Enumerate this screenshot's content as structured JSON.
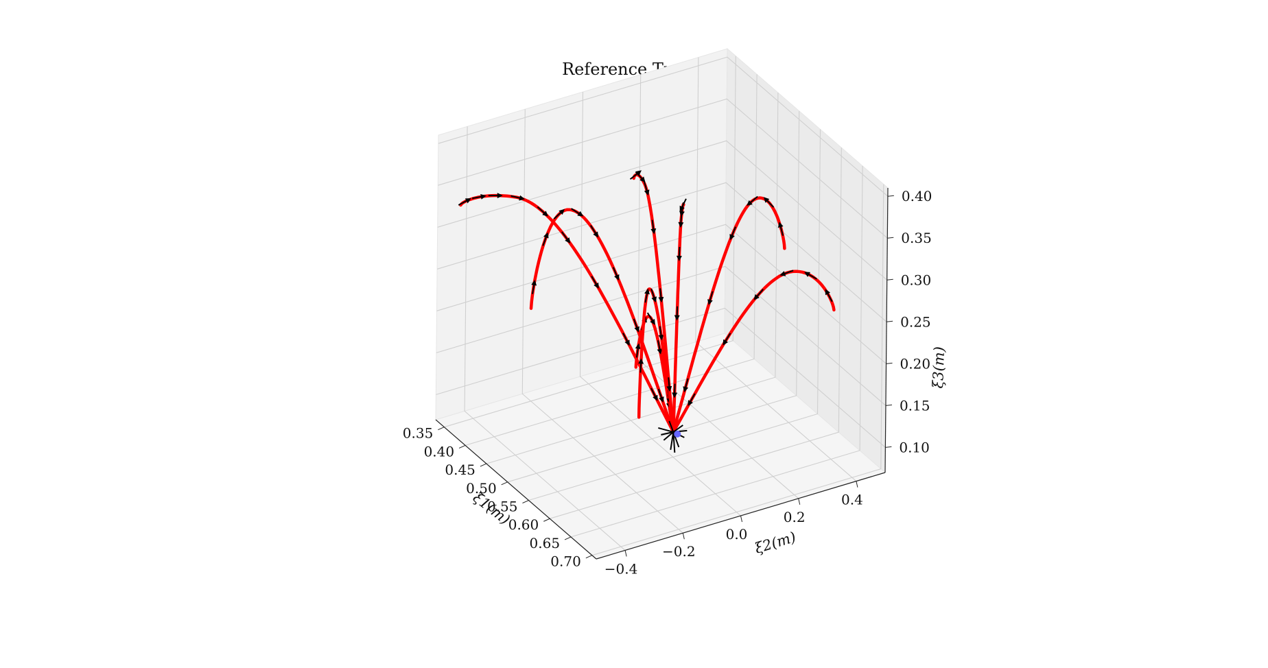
{
  "chart_data": {
    "type": "line",
    "projection": "3d",
    "title": "Reference Trajectory",
    "xlabel": "ξ1(m)",
    "ylabel": "ξ2(m)",
    "zlabel": "ξ3(m)",
    "x_ticks": [
      "0.35",
      "0.40",
      "0.45",
      "0.50",
      "0.55",
      "0.60",
      "0.65",
      "0.70"
    ],
    "y_ticks": [
      "−0.4",
      "−0.2",
      "0.0",
      "0.2",
      "0.4"
    ],
    "z_ticks": [
      "0.10",
      "0.15",
      "0.20",
      "0.25",
      "0.30",
      "0.35",
      "0.40"
    ],
    "xlim": [
      0.33,
      0.71
    ],
    "ylim": [
      -0.5,
      0.5
    ],
    "zlim": [
      0.07,
      0.41
    ],
    "grid": true,
    "background_panes": "light gray",
    "line_color": "#ff0000",
    "arrow_color": "#000000",
    "goal_marker_color": "#6666ff",
    "goal_point": [
      0.55,
      0.0,
      0.1
    ],
    "series": [
      {
        "start": [
          0.35,
          -0.45,
          0.33
        ],
        "peak": 0.35,
        "arrows": 9
      },
      {
        "start": [
          0.45,
          -0.35,
          0.24
        ],
        "peak": 0.36,
        "arrows": 8
      },
      {
        "start": [
          0.65,
          -0.28,
          0.25
        ],
        "peak": 0.29,
        "arrows": 5
      },
      {
        "start": [
          0.55,
          -0.12,
          0.13
        ],
        "peak": 0.28,
        "arrows": 5
      },
      {
        "start": [
          0.4,
          0.25,
          0.28
        ],
        "peak": 0.29,
        "arrows": 6
      },
      {
        "start": [
          0.55,
          0.38,
          0.28
        ],
        "peak": 0.35,
        "arrows": 6
      },
      {
        "start": [
          0.62,
          0.45,
          0.23
        ],
        "peak": 0.28,
        "arrows": 6
      },
      {
        "start": [
          0.35,
          0.15,
          0.3
        ],
        "peak": 0.32,
        "arrows": 6
      }
    ]
  }
}
